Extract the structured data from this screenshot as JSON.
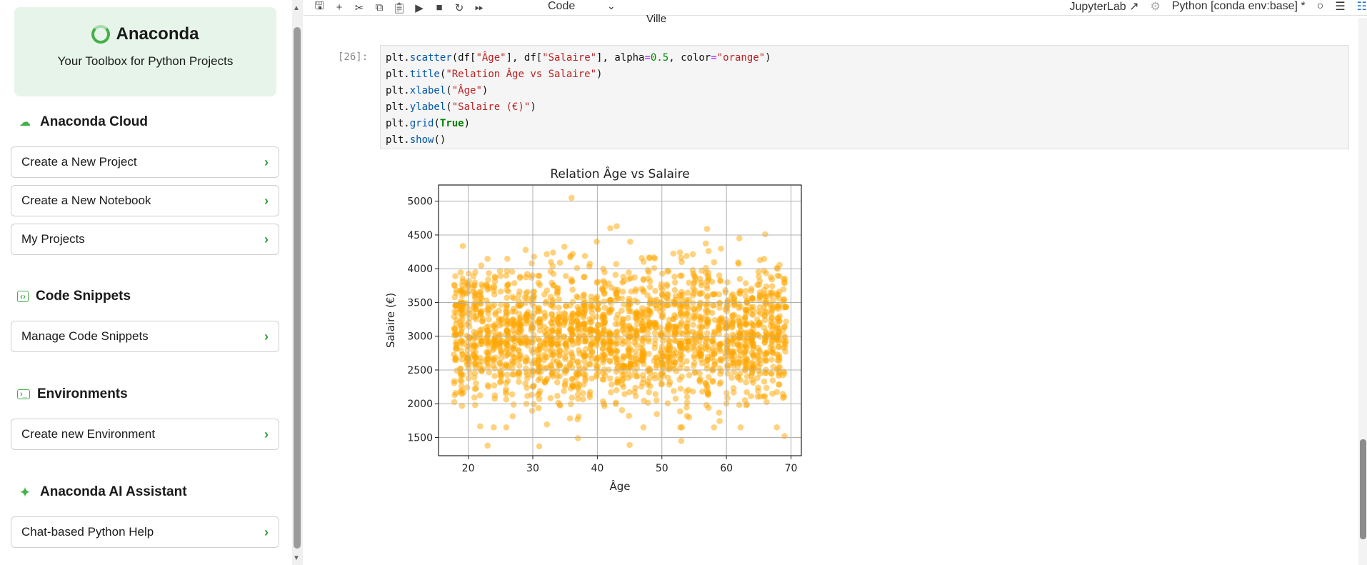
{
  "sidebar": {
    "brand": "Anaconda",
    "tagline": "Your Toolbox for Python Projects",
    "sections": [
      {
        "title": "Anaconda Cloud",
        "icon": "cloud-icon",
        "items": [
          "Create a New Project",
          "Create a New Notebook",
          "My Projects"
        ]
      },
      {
        "title": "Code Snippets",
        "icon": "code-icon",
        "items": [
          "Manage Code Snippets"
        ]
      },
      {
        "title": "Environments",
        "icon": "environment-icon",
        "items": [
          "Create new Environment"
        ]
      },
      {
        "title": "Anaconda AI Assistant",
        "icon": "sparkle-icon",
        "items": [
          "Chat-based Python Help"
        ]
      }
    ]
  },
  "toolbar": {
    "cell_type": "Code",
    "jupyterlab_link": "JupyterLab",
    "kernel": "Python [conda env:base] *"
  },
  "notebook": {
    "prev_output_text": "Ville",
    "prompt": "[26]:",
    "code_lines": [
      "plt.scatter(df[\"Âge\"], df[\"Salaire\"], alpha=0.5, color=\"orange\")",
      "plt.title(\"Relation Âge vs Salaire\")",
      "plt.xlabel(\"Âge\")",
      "plt.ylabel(\"Salaire (€)\")",
      "plt.grid(True)",
      "plt.show()"
    ]
  },
  "chart_data": {
    "type": "scatter",
    "title": "Relation Âge vs Salaire",
    "xlabel": "Âge",
    "ylabel": "Salaire (€)",
    "xlim": [
      15.4,
      71.6
    ],
    "ylim": [
      1230,
      5240
    ],
    "xticks": [
      20,
      30,
      40,
      50,
      60,
      70
    ],
    "yticks": [
      1500,
      2000,
      2500,
      3000,
      3500,
      4000,
      4500,
      5000
    ],
    "grid": true,
    "color": "#ffa500",
    "alpha": 0.5,
    "x_range": [
      18,
      69
    ],
    "y_center": 3000,
    "y_spread": 500,
    "outliers": [
      {
        "x": 36,
        "y": 5050
      },
      {
        "x": 43,
        "y": 4630
      },
      {
        "x": 42,
        "y": 4600
      },
      {
        "x": 57,
        "y": 4590
      },
      {
        "x": 66,
        "y": 4510
      },
      {
        "x": 62,
        "y": 4450
      },
      {
        "x": 23,
        "y": 1380
      },
      {
        "x": 31,
        "y": 1370
      },
      {
        "x": 45,
        "y": 1390
      },
      {
        "x": 53,
        "y": 1450
      },
      {
        "x": 37,
        "y": 1490
      },
      {
        "x": 69,
        "y": 1520
      }
    ]
  }
}
